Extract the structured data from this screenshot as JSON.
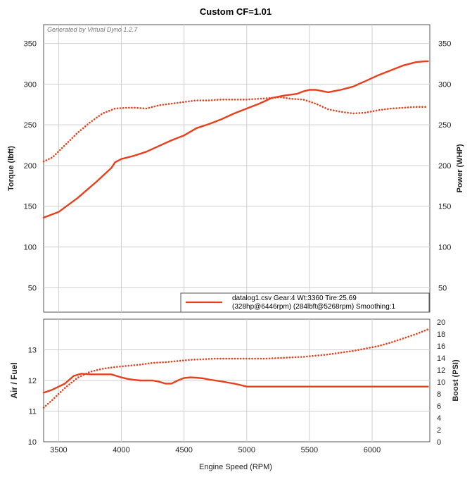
{
  "title": "Custom CF=1.01",
  "generated_by": "Generated by Virtual Dyno 1.2.7",
  "colors": {
    "series": "#e8401c",
    "grid": "#cfcfcf",
    "frame": "#555555"
  },
  "legend": {
    "line1": "datalog1.csv Gear:4 Wt:3360 Tire:25.69",
    "line2": "(328hp@6446rpm) (284lbft@5268rpm) Smoothing:1",
    "placement": "bottom-right"
  },
  "chart_data": [
    {
      "type": "line",
      "panel": "top",
      "xlabel": "Engine Speed (RPM)",
      "xlim": [
        3380,
        6460
      ],
      "ylabel_left": "Torque (lbft)",
      "ylabel_right": "Power (WHP)",
      "ylim": [
        20,
        373
      ],
      "yticks": [
        50,
        100,
        150,
        200,
        250,
        300,
        350
      ],
      "grid": true,
      "series": [
        {
          "axis": "right",
          "style": "solid",
          "x": [
            3380,
            3500,
            3650,
            3800,
            3920,
            3950,
            4000,
            4100,
            4200,
            4300,
            4400,
            4500,
            4600,
            4700,
            4800,
            4900,
            5000,
            5100,
            5200,
            5300,
            5400,
            5450,
            5500,
            5550,
            5650,
            5750,
            5850,
            5950,
            6050,
            6150,
            6250,
            6350,
            6420,
            6446
          ],
          "values": [
            136,
            143,
            160,
            180,
            197,
            204,
            208,
            212,
            217,
            224,
            231,
            237,
            246,
            251,
            257,
            264,
            270,
            276,
            283,
            286,
            288,
            291,
            293,
            293,
            290,
            293,
            297,
            304,
            311,
            317,
            323,
            327,
            328,
            328
          ]
        },
        {
          "axis": "left",
          "style": "dotted",
          "x": [
            3380,
            3450,
            3550,
            3650,
            3750,
            3850,
            3950,
            4050,
            4100,
            4200,
            4300,
            4400,
            4500,
            4600,
            4700,
            4800,
            4900,
            5000,
            5100,
            5200,
            5268,
            5350,
            5450,
            5550,
            5650,
            5750,
            5850,
            5950,
            6050,
            6150,
            6250,
            6350,
            6446
          ],
          "values": [
            205,
            210,
            225,
            240,
            253,
            264,
            270,
            271,
            271,
            270,
            274,
            276,
            278,
            280,
            280,
            281,
            281,
            281,
            282,
            283,
            284,
            282,
            281,
            276,
            269,
            266,
            264,
            265,
            268,
            270,
            271,
            272,
            272
          ]
        }
      ]
    },
    {
      "type": "line",
      "panel": "bottom",
      "xlabel": "Engine Speed (RPM)",
      "xlim": [
        3380,
        6460
      ],
      "xticks": [
        3500,
        4000,
        4500,
        5000,
        5500,
        6000
      ],
      "ylabel_left": "Air / Fuel",
      "ylabel_right": "Boost (PSI)",
      "ylim_left": [
        10,
        14
      ],
      "yticks_left": [
        10,
        11,
        12,
        13
      ],
      "ylim_right": [
        0,
        20.5
      ],
      "yticks_right": [
        0,
        2,
        4,
        6,
        8,
        10,
        12,
        14,
        16,
        18,
        20
      ],
      "grid": true,
      "series": [
        {
          "axis": "left",
          "style": "solid",
          "x": [
            3380,
            3450,
            3550,
            3620,
            3680,
            3750,
            3850,
            3920,
            3960,
            4000,
            4050,
            4100,
            4150,
            4200,
            4250,
            4300,
            4350,
            4400,
            4450,
            4500,
            4550,
            4600,
            4650,
            4700,
            4750,
            4800,
            4850,
            4900,
            4950,
            5000,
            5100,
            5500,
            6000,
            6446
          ],
          "values": [
            11.6,
            11.7,
            11.9,
            12.15,
            12.22,
            12.2,
            12.2,
            12.2,
            12.15,
            12.1,
            12.05,
            12.02,
            12.0,
            12.0,
            12.0,
            11.96,
            11.9,
            11.9,
            12.0,
            12.08,
            12.1,
            12.09,
            12.07,
            12.03,
            12.0,
            11.97,
            11.93,
            11.9,
            11.85,
            11.8,
            11.8,
            11.8,
            11.8,
            11.8
          ]
        },
        {
          "axis": "right",
          "style": "dotted",
          "x": [
            3380,
            3450,
            3550,
            3650,
            3750,
            3850,
            3950,
            4050,
            4150,
            4250,
            4350,
            4450,
            4550,
            4650,
            4750,
            4850,
            4950,
            5050,
            5150,
            5250,
            5350,
            5450,
            5550,
            5650,
            5750,
            5850,
            5950,
            6050,
            6150,
            6250,
            6350,
            6446
          ],
          "values": [
            5.7,
            7.0,
            9.0,
            10.7,
            11.7,
            12.2,
            12.5,
            12.7,
            12.9,
            13.2,
            13.3,
            13.5,
            13.7,
            13.8,
            13.9,
            13.9,
            13.9,
            13.9,
            13.9,
            14.0,
            14.1,
            14.2,
            14.4,
            14.6,
            14.9,
            15.2,
            15.6,
            16.0,
            16.6,
            17.3,
            18.0,
            18.8
          ]
        }
      ]
    }
  ]
}
